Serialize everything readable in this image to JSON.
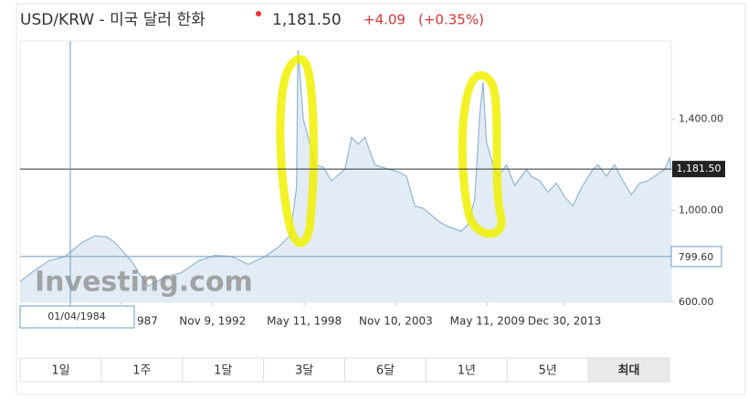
{
  "header": {
    "title": "USD/KRW - 미국 달러 한화",
    "price": "1,181.50",
    "change": "+4.09",
    "change_pct": "(+0.35%)"
  },
  "chart_data": {
    "type": "line",
    "xlim": [
      1981.3,
      2020.4
    ],
    "xticks": [
      {
        "value": 1987.36,
        "label": "987"
      },
      {
        "value": 1992.86,
        "label": "Nov 9, 1992"
      },
      {
        "value": 1998.36,
        "label": "May 11, 1998"
      },
      {
        "value": 2003.86,
        "label": "Nov 10, 2003"
      },
      {
        "value": 2009.36,
        "label": "May 11, 2009"
      },
      {
        "value": 2013.99,
        "label": "Dec 30, 2013"
      }
    ],
    "ylim": [
      600,
      1740
    ],
    "yticks": [
      {
        "value": 600,
        "label": "600.00"
      },
      {
        "value": 1000,
        "label": "1,000.00"
      },
      {
        "value": 1400,
        "label": "1,400.00"
      }
    ],
    "series": [
      {
        "color": "#8fb6d6",
        "x": [
          1981.3,
          1982,
          1983,
          1984,
          1985,
          1985.8,
          1986.5,
          1987,
          1988,
          1988.5,
          1989,
          1990,
          1991,
          1992,
          1993,
          1994,
          1995,
          1996,
          1996.8,
          1997.5,
          1997.9,
          1997.98,
          1998.1,
          1998.3,
          1998.6,
          1999,
          1999.5,
          2000,
          2000.8,
          2001.2,
          2001.6,
          2002,
          2002.6,
          2003,
          2003.5,
          2004,
          2004.5,
          2005,
          2005.5,
          2006,
          2006.5,
          2007,
          2007.8,
          2008.2,
          2008.6,
          2008.9,
          2009.1,
          2009.3,
          2009.7,
          2010,
          2010.5,
          2011,
          2011.7,
          2012,
          2012.5,
          2013,
          2013.5,
          2014,
          2014.5,
          2015,
          2015.7,
          2016,
          2016.5,
          2017,
          2017.5,
          2018,
          2018.5,
          2019,
          2020,
          2020.3,
          2020.4
        ],
        "values": [
          690,
          730,
          780,
          800,
          860,
          890,
          885,
          860,
          780,
          720,
          670,
          710,
          730,
          780,
          805,
          800,
          765,
          800,
          840,
          890,
          1100,
          1700,
          1600,
          1400,
          1320,
          1200,
          1190,
          1130,
          1180,
          1320,
          1290,
          1320,
          1200,
          1190,
          1180,
          1170,
          1150,
          1020,
          1010,
          980,
          950,
          930,
          910,
          940,
          1050,
          1420,
          1560,
          1300,
          1200,
          1150,
          1200,
          1110,
          1180,
          1150,
          1130,
          1080,
          1120,
          1060,
          1020,
          1100,
          1180,
          1200,
          1150,
          1200,
          1130,
          1070,
          1120,
          1130,
          1180,
          1230,
          1181.5
        ]
      }
    ],
    "last_value": 1181.5,
    "last_label": "1,181.50",
    "crosshair": {
      "value": 799.6,
      "label": "799.60",
      "date": "01/04/1984"
    },
    "watermark": "Investing.com",
    "ranges": [
      "1일",
      "1주",
      "1달",
      "3달",
      "6달",
      "1년",
      "5년",
      "최대"
    ],
    "selected_range": 7
  }
}
